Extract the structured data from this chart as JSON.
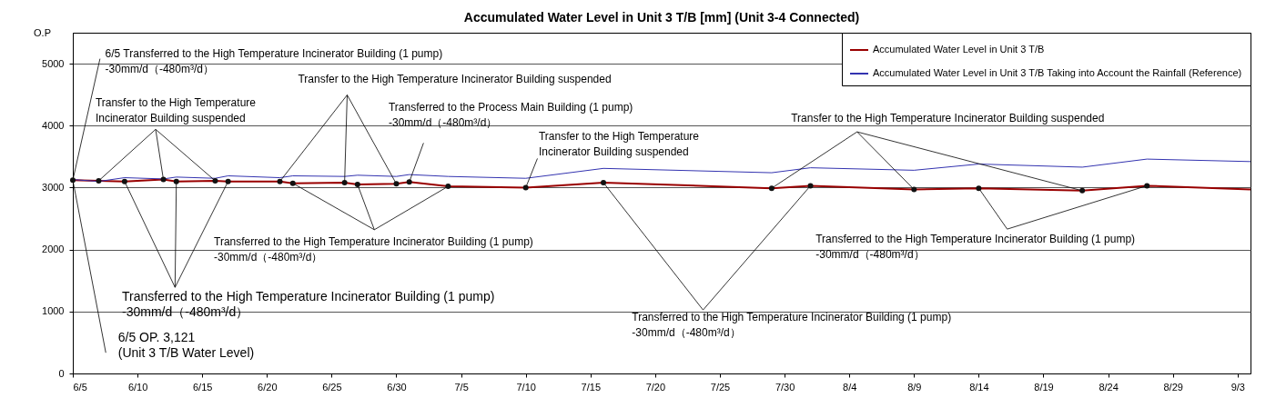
{
  "chart_data": {
    "type": "line",
    "title": "Accumulated Water Level in Unit 3 T/B [mm] (Unit 3-4 Connected)",
    "ylabel": "O.P",
    "x": [
      "--06-05",
      "--06-07",
      "--06-09",
      "--06-12",
      "--06-13",
      "--06-16",
      "--06-17",
      "--06-21",
      "--06-22",
      "--06-26",
      "--06-27",
      "--06-30",
      "--07-01",
      "--07-04",
      "--07-10",
      "--07-16",
      "--07-29",
      "--08-01",
      "--08-09",
      "--08-14",
      "--08-22",
      "--08-27",
      "--09-04"
    ],
    "series": [
      {
        "name": "Accumulated Water Level in Unit 3 T/B",
        "color": "#990000",
        "values": [
          3121,
          3110,
          3100,
          3130,
          3100,
          3110,
          3100,
          3100,
          3070,
          3080,
          3050,
          3060,
          3090,
          3020,
          3000,
          3080,
          2990,
          3030,
          2970,
          2990,
          2950,
          3030,
          2970
        ]
      },
      {
        "name": "Accumulated Water Level in Unit 3 T/B Taking into Account the Rainfall (Reference)",
        "color": "#3333b0",
        "values": [
          3130,
          3100,
          3160,
          3140,
          3170,
          3150,
          3190,
          3160,
          3190,
          3180,
          3200,
          3180,
          3210,
          3180,
          3150,
          3310,
          3240,
          3320,
          3280,
          3380,
          3330,
          3460,
          3420
        ]
      },
      {
        "type": "scatter",
        "color": "#111111",
        "marker": "circle",
        "x": [
          "--06-05",
          "--06-07",
          "--06-09",
          "--06-12",
          "--06-13",
          "--06-16",
          "--06-17",
          "--06-21",
          "--06-22",
          "--06-26",
          "--06-27",
          "--06-30",
          "--07-01",
          "--07-04",
          "--07-10",
          "--07-16",
          "--07-29",
          "--08-01",
          "--08-09",
          "--08-14",
          "--08-22",
          "--08-27"
        ],
        "values": [
          3121,
          3110,
          3100,
          3130,
          3100,
          3110,
          3100,
          3100,
          3070,
          3080,
          3050,
          3060,
          3090,
          3020,
          3000,
          3080,
          2990,
          3030,
          2970,
          2990,
          2950,
          3030
        ]
      }
    ],
    "xlim": [
      "--06-05",
      "--09-04"
    ],
    "xticks": [
      {
        "value": "--06-05",
        "label": "6/5"
      },
      {
        "value": "--06-10",
        "label": "6/10"
      },
      {
        "value": "--06-15",
        "label": "6/15"
      },
      {
        "value": "--06-20",
        "label": "6/20"
      },
      {
        "value": "--06-25",
        "label": "6/25"
      },
      {
        "value": "--06-30",
        "label": "6/30"
      },
      {
        "value": "--07-05",
        "label": "7/5"
      },
      {
        "value": "--07-10",
        "label": "7/10"
      },
      {
        "value": "--07-15",
        "label": "7/15"
      },
      {
        "value": "--07-20",
        "label": "7/20"
      },
      {
        "value": "--07-25",
        "label": "7/25"
      },
      {
        "value": "--07-30",
        "label": "7/30"
      },
      {
        "value": "--08-04",
        "label": "8/4"
      },
      {
        "value": "--08-09",
        "label": "8/9"
      },
      {
        "value": "--08-14",
        "label": "8/14"
      },
      {
        "value": "--08-19",
        "label": "8/19"
      },
      {
        "value": "--08-24",
        "label": "8/24"
      },
      {
        "value": "--08-29",
        "label": "8/29"
      },
      {
        "value": "--09-03",
        "label": "9/3"
      }
    ],
    "ylim": [
      0,
      5500
    ],
    "yticks": [
      0,
      1000,
      2000,
      3000,
      4000,
      5000
    ],
    "grid": "y",
    "legend": "top right",
    "annotations": [
      {
        "text": "6/5  Transferred to the High Temperature Incinerator Building (1 pump)\n-30mm/d（-480m³/d）",
        "x": "--06-05",
        "y": 3121
      },
      {
        "text": "Transfer to the High Temperature\nIncinerator Building suspended",
        "x": "--06-07",
        "y": 3110
      },
      {
        "text": "Transfer to the High Temperature Incinerator Building suspended",
        "x": "--06-21",
        "y": 3100
      },
      {
        "text": "Transferred to the Process Main Building (1 pump)\n-30mm/d（-480m³/d）",
        "x": "--07-01",
        "y": 3090
      },
      {
        "text": "Transfer to the High Temperature\nIncinerator Building suspended",
        "x": "--07-10",
        "y": 3000
      },
      {
        "text": "Transfer to the High Temperature Incinerator Building suspended",
        "x": "--07-29",
        "y": 2990
      },
      {
        "text": "Transferred to the High Temperature Incinerator Building (1 pump)\n-30mm/d（-480m³/d）",
        "x": "--06-22",
        "y": 3070
      },
      {
        "text": "Transferred to the High Temperature Incinerator Building (1 pump)\n-30mm/d（-480m³/d）",
        "x": "--06-09",
        "y": 3100
      },
      {
        "text": "Transferred to the High Temperature Incinerator Building (1 pump)\n-30mm/d（-480m³/d）",
        "x": "--07-16",
        "y": 3080
      },
      {
        "text": "Transferred to the High Temperature Incinerator Building (1 pump)\n-30mm/d（-480m³/d）",
        "x": "--08-14",
        "y": 2990
      },
      {
        "text": "6/5 OP. 3,121\n(Unit 3 T/B Water Level)",
        "x": "--06-05",
        "y": 3121
      }
    ]
  }
}
